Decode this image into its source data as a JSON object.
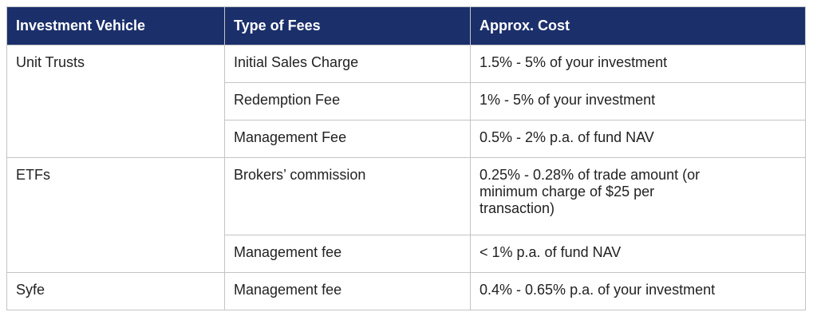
{
  "table": {
    "headers": [
      "Investment Vehicle",
      "Type of Fees",
      "Approx. Cost"
    ],
    "groups": [
      {
        "vehicle": "Unit Trusts",
        "rows": [
          {
            "fee": "Initial Sales Charge",
            "cost": "1.5% - 5% of your investment"
          },
          {
            "fee": "Redemption Fee",
            "cost": "1% - 5% of your investment"
          },
          {
            "fee": "Management Fee",
            "cost": "0.5% - 2% p.a. of fund NAV"
          }
        ]
      },
      {
        "vehicle": "ETFs",
        "rows": [
          {
            "fee": "Brokers’ commission",
            "cost": "0.25% - 0.28% of trade amount (or minimum charge of $25 per transaction)"
          },
          {
            "fee": "Management fee",
            "cost": "< 1% p.a. of fund NAV"
          }
        ]
      },
      {
        "vehicle": "Syfe",
        "rows": [
          {
            "fee": "Management fee",
            "cost": "0.4% - 0.65% p.a. of your investment"
          }
        ]
      }
    ]
  },
  "colors": {
    "header_bg": "#1b2f6b",
    "header_text": "#ffffff",
    "border": "#c4c4c4"
  }
}
